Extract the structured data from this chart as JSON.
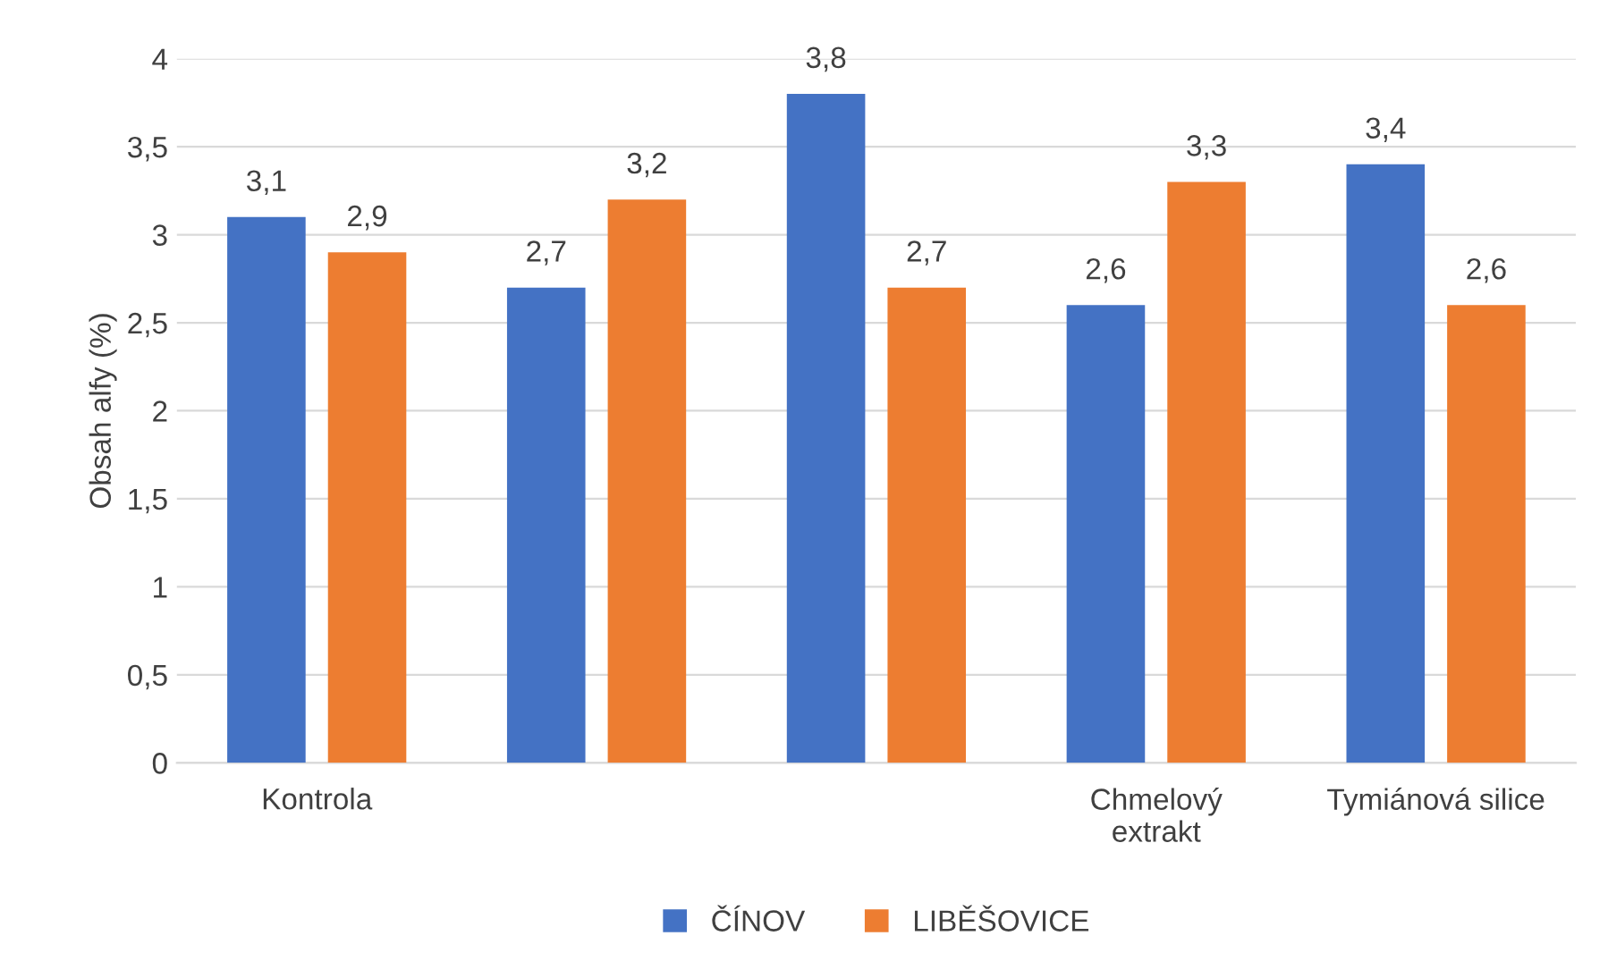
{
  "chart_data": {
    "type": "bar",
    "ylabel": "Obsah alfy (%)",
    "categories": [
      "Kontrola",
      null,
      null,
      "Chmelový\nextrakt",
      "Tymiánová silice"
    ],
    "series": [
      {
        "name": "ČÍNOV",
        "color": "#4472c4",
        "values": [
          3.1,
          2.7,
          3.8,
          2.6,
          3.4
        ],
        "value_labels": [
          "3,1",
          "2,7",
          "3,8",
          "2,6",
          "3,4"
        ]
      },
      {
        "name": "LIBĚŠOVICE",
        "color": "#ed7d31",
        "values": [
          2.9,
          3.2,
          2.7,
          3.3,
          2.6
        ],
        "value_labels": [
          "2,9",
          "3,2",
          "2,7",
          "3,3",
          "2,6"
        ]
      }
    ],
    "ylim": [
      0,
      4
    ],
    "yticks": [
      0,
      {
        "value": 0.5,
        "label": "0,5"
      },
      1,
      {
        "value": 1.5,
        "label": "1,5"
      },
      2,
      {
        "value": 2.5,
        "label": "2,5"
      },
      3,
      {
        "value": 3.5,
        "label": "3,5"
      },
      4
    ],
    "grid": "y",
    "legend": "bottom"
  }
}
